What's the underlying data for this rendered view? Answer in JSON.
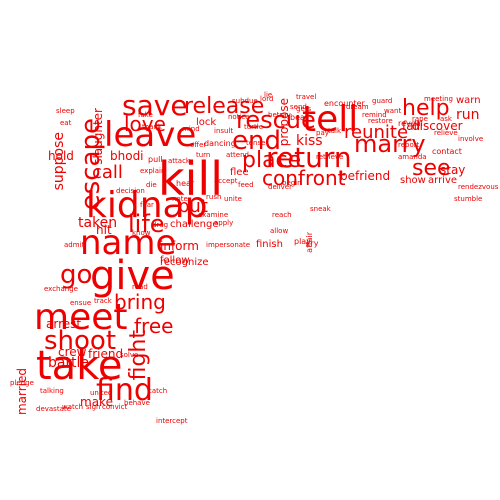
{
  "cloud": {
    "color": "#ee0000",
    "shape": "gun-silhouette",
    "words": [
      "tell",
      "kill",
      "leave",
      "take",
      "meet",
      "give",
      "kidnap",
      "name",
      "end",
      "return",
      "save",
      "rescue",
      "find",
      "marry",
      "help",
      "escape",
      "release",
      "go",
      "shoot",
      "life",
      "see",
      "place",
      "confront",
      "reunite",
      "fight",
      "bring",
      "free",
      "love",
      "call",
      "put",
      "taken",
      "inform",
      "recognize",
      "follow",
      "crew",
      "friend",
      "married",
      "make",
      "arrest",
      "battle",
      "suppose",
      "hold",
      "slaughter",
      "propose",
      "fall",
      "warn",
      "discover",
      "stay",
      "run",
      "arrive",
      "show",
      "contact",
      "befriend",
      "bhodi",
      "lock",
      "kiss",
      "flee",
      "pull",
      "hit",
      "challenge",
      "finish",
      "impersonate",
      "play",
      "cry",
      "travel",
      "encounter",
      "lord",
      "subdue",
      "insult",
      "turtle",
      "dancing",
      "examine",
      "attack",
      "retrieve",
      "reveal",
      "involve",
      "rape",
      "sneak",
      "solve",
      "talking",
      "devastate",
      "watch",
      "sign",
      "convict",
      "pledge",
      "united",
      "behave",
      "catch",
      "intercept",
      "beat",
      "exchange",
      "ensue",
      "track",
      "lie",
      "read",
      "turn",
      "hear",
      "affair",
      "decision",
      "betray",
      "deliver",
      "accept",
      "attend",
      "apply",
      "allow",
      "feed",
      "fear",
      "note",
      "know",
      "admit",
      "meeting",
      "relieve",
      "restore",
      "begin",
      "want",
      "pay",
      "talk",
      "send",
      "dream",
      "guard",
      "tense",
      "notice",
      "ask",
      "amanda",
      "rendezvous",
      "stumble",
      "report",
      "remind",
      "drag",
      "offer",
      "gets",
      "sleep",
      "eat",
      "fake",
      "thank",
      "mind",
      "rush",
      "unite",
      "explain",
      "die",
      "reach"
    ]
  }
}
